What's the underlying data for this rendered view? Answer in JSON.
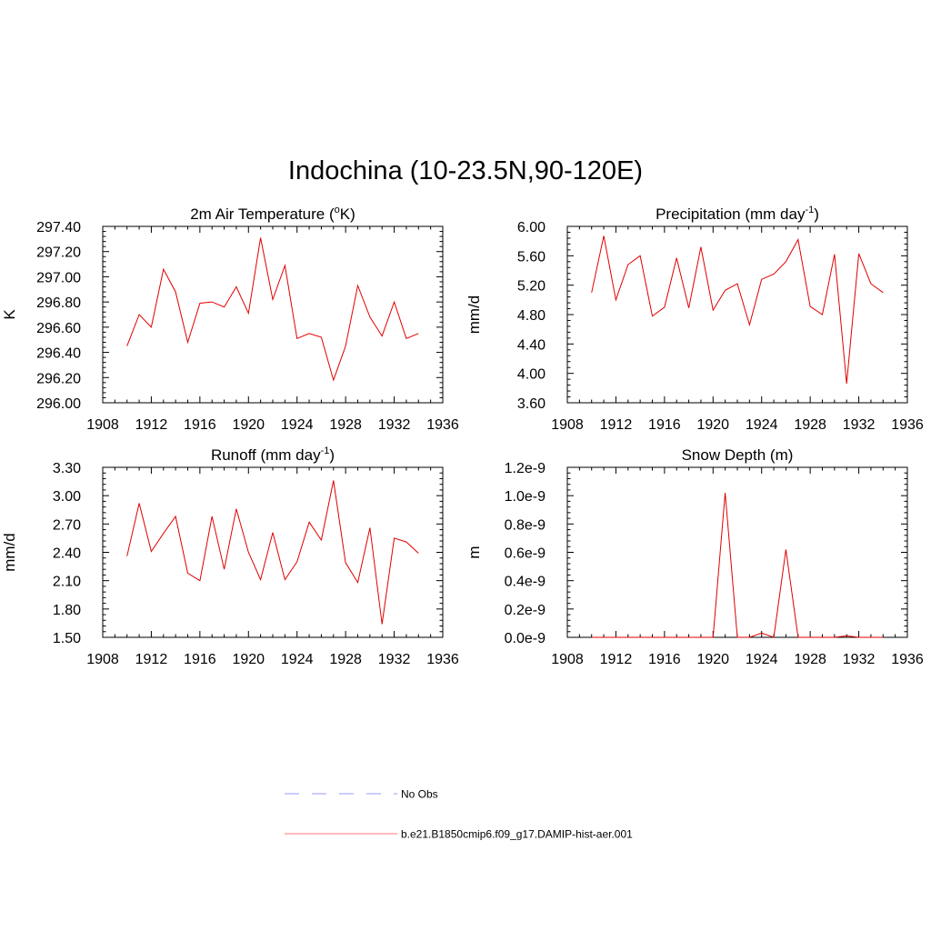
{
  "title": "Indochina (10-23.5N,90-120E)",
  "legend": [
    {
      "label": "No Obs",
      "color": "#9999ff",
      "style": "dashed"
    },
    {
      "label": "b.e21.B1850cmip6.f09_g17.DAMIP-hist-aer.001",
      "color": "#ff7777",
      "style": "solid"
    }
  ],
  "chart_data": [
    {
      "type": "line",
      "title": "2m Air Temperature (oK)",
      "title_parts": {
        "pre": "2m Air Temperature (",
        "sup": "o",
        "post": "K)"
      },
      "ylabel": "K",
      "xlim": [
        1908,
        1936
      ],
      "ylim": [
        296.0,
        297.4
      ],
      "xticks": [
        1908,
        1912,
        1916,
        1920,
        1924,
        1928,
        1932,
        1936
      ],
      "yticks": [
        "296.00",
        "296.20",
        "296.40",
        "296.60",
        "296.80",
        "297.00",
        "297.20",
        "297.40"
      ],
      "series": [
        {
          "color": "#e00000",
          "x": [
            1910,
            1911,
            1912,
            1913,
            1914,
            1915,
            1916,
            1917,
            1918,
            1919,
            1920,
            1921,
            1922,
            1923,
            1924,
            1925,
            1926,
            1927,
            1928,
            1929,
            1930,
            1931,
            1932,
            1933,
            1934
          ],
          "values": [
            296.45,
            296.7,
            296.6,
            297.06,
            296.88,
            296.48,
            296.79,
            296.8,
            296.76,
            296.92,
            296.71,
            297.31,
            296.82,
            297.09,
            296.51,
            296.55,
            296.52,
            296.18,
            296.45,
            296.93,
            296.68,
            296.53,
            296.8,
            296.51,
            296.55
          ]
        }
      ]
    },
    {
      "type": "line",
      "title": "Precipitation (mm day-1)",
      "title_parts": {
        "pre": "Precipitation (mm day",
        "sup": "-1",
        "post": ")"
      },
      "ylabel": "mm/d",
      "xlim": [
        1908,
        1936
      ],
      "ylim": [
        3.6,
        6.0
      ],
      "xticks": [
        1908,
        1912,
        1916,
        1920,
        1924,
        1928,
        1932,
        1936
      ],
      "yticks": [
        "3.60",
        "4.00",
        "4.40",
        "4.80",
        "5.20",
        "5.60",
        "6.00"
      ],
      "series": [
        {
          "color": "#e00000",
          "x": [
            1910,
            1911,
            1912,
            1913,
            1914,
            1915,
            1916,
            1917,
            1918,
            1919,
            1920,
            1921,
            1922,
            1923,
            1924,
            1925,
            1926,
            1927,
            1928,
            1929,
            1930,
            1931,
            1932,
            1933,
            1934
          ],
          "values": [
            5.1,
            5.87,
            5.0,
            5.48,
            5.6,
            4.78,
            4.9,
            5.57,
            4.89,
            5.72,
            4.86,
            5.13,
            5.22,
            4.66,
            5.28,
            5.35,
            5.52,
            5.82,
            4.91,
            4.8,
            5.62,
            3.86,
            5.63,
            5.22,
            5.1
          ]
        }
      ]
    },
    {
      "type": "line",
      "title": "Runoff (mm day-1)",
      "title_parts": {
        "pre": "Runoff (mm day",
        "sup": "-1",
        "post": ")"
      },
      "ylabel": "mm/d",
      "xlim": [
        1908,
        1936
      ],
      "ylim": [
        1.5,
        3.3
      ],
      "xticks": [
        1908,
        1912,
        1916,
        1920,
        1924,
        1928,
        1932,
        1936
      ],
      "yticks": [
        "1.50",
        "1.80",
        "2.10",
        "2.40",
        "2.70",
        "3.00",
        "3.30"
      ],
      "series": [
        {
          "color": "#e00000",
          "x": [
            1910,
            1911,
            1912,
            1913,
            1914,
            1915,
            1916,
            1917,
            1918,
            1919,
            1920,
            1921,
            1922,
            1923,
            1924,
            1925,
            1926,
            1927,
            1928,
            1929,
            1930,
            1931,
            1932,
            1933,
            1934
          ],
          "values": [
            2.36,
            2.92,
            2.41,
            2.6,
            2.78,
            2.18,
            2.1,
            2.78,
            2.22,
            2.86,
            2.4,
            2.11,
            2.61,
            2.11,
            2.3,
            2.72,
            2.53,
            3.16,
            2.29,
            2.08,
            2.66,
            1.64,
            2.55,
            2.51,
            2.39
          ]
        }
      ]
    },
    {
      "type": "line",
      "title": "Snow Depth (m)",
      "title_parts": {
        "pre": "Snow Depth (m)",
        "sup": "",
        "post": ""
      },
      "ylabel": "m",
      "xlim": [
        1908,
        1936
      ],
      "ylim": [
        0,
        1.2e-09
      ],
      "xticks": [
        1908,
        1912,
        1916,
        1920,
        1924,
        1928,
        1932,
        1936
      ],
      "yticks": [
        "0.0e-9",
        "0.2e-9",
        "0.4e-9",
        "0.6e-9",
        "0.8e-9",
        "1.0e-9",
        "1.2e-9"
      ],
      "series": [
        {
          "color": "#e00000",
          "x": [
            1910,
            1911,
            1912,
            1913,
            1914,
            1915,
            1916,
            1917,
            1918,
            1919,
            1920,
            1921,
            1922,
            1923,
            1924,
            1925,
            1926,
            1927,
            1928,
            1929,
            1930,
            1931,
            1932,
            1933,
            1934
          ],
          "values": [
            0,
            0,
            0,
            0,
            0,
            0,
            0,
            0,
            0,
            0,
            0,
            1.02e-09,
            0,
            0,
            3e-11,
            0,
            6.2e-10,
            0,
            0,
            0,
            0,
            1e-11,
            0,
            0,
            0
          ]
        }
      ]
    }
  ]
}
